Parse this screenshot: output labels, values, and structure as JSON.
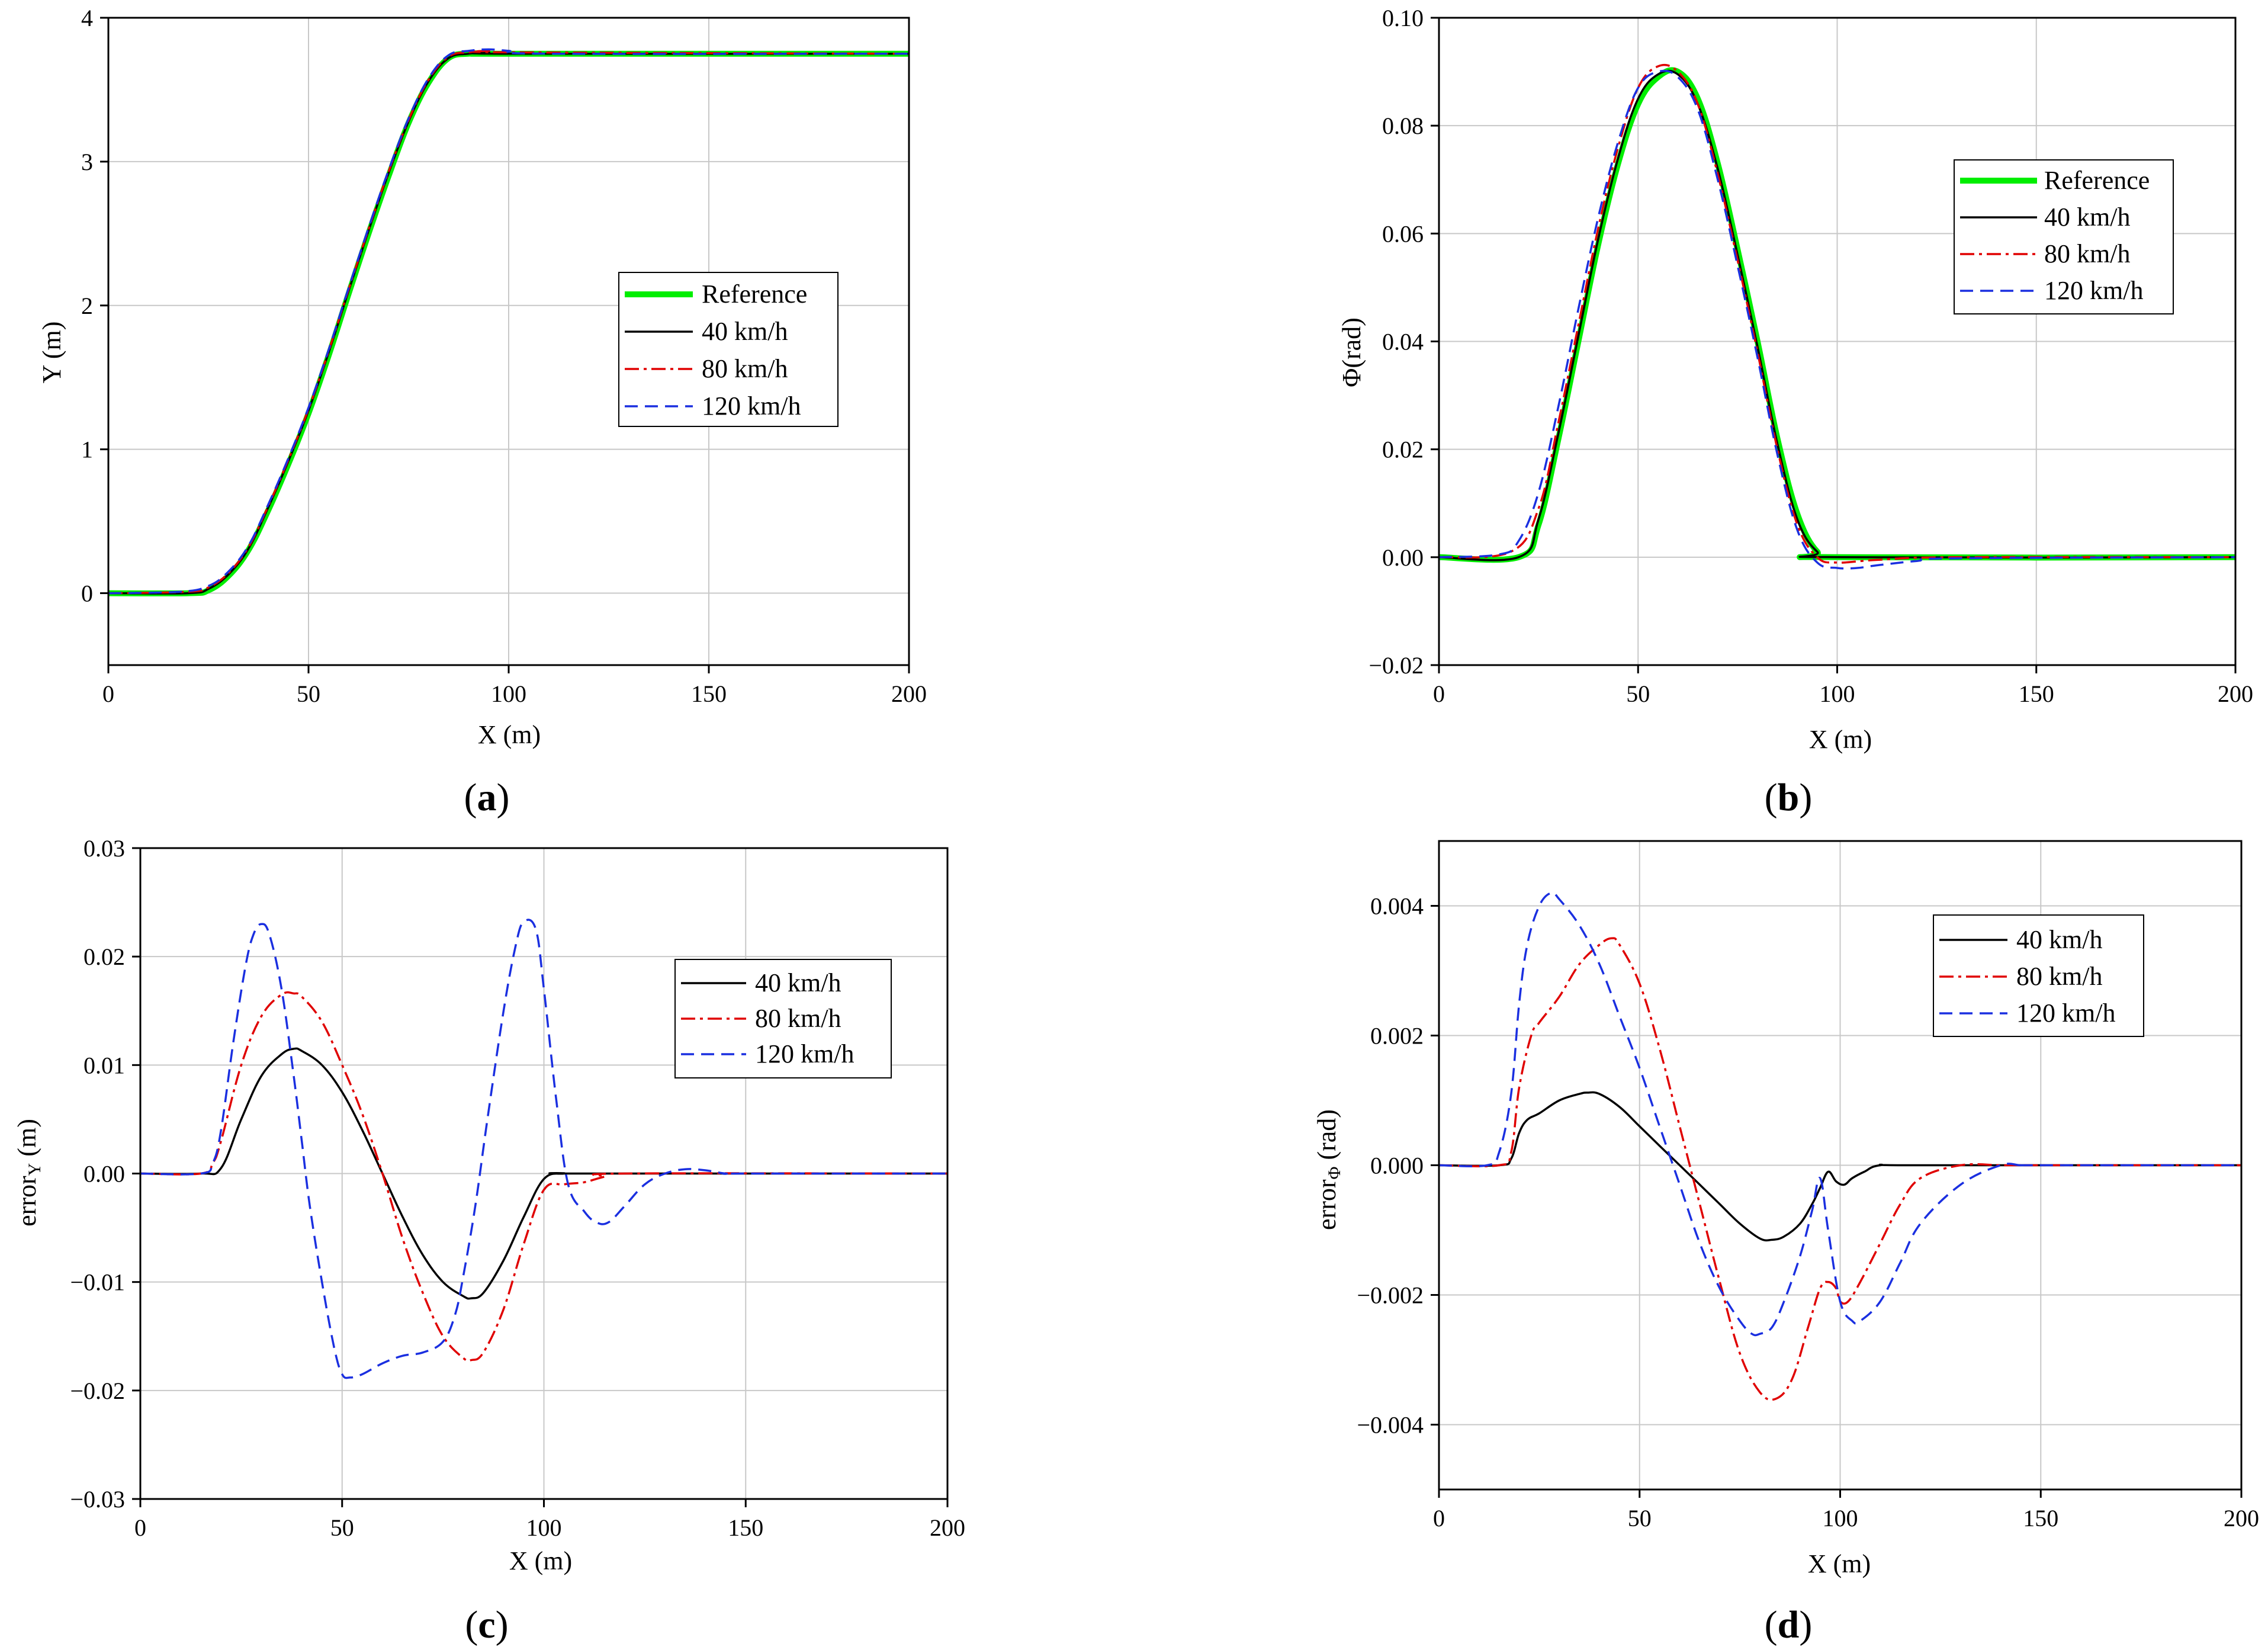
{
  "figure": {
    "panels": [
      {
        "label_open": "(",
        "label_letter": "a",
        "label_close": ")"
      },
      {
        "label_open": "(",
        "label_letter": "b",
        "label_close": ")"
      },
      {
        "label_open": "(",
        "label_letter": "c",
        "label_close": ")"
      },
      {
        "label_open": "(",
        "label_letter": "d",
        "label_close": ")"
      }
    ]
  },
  "colors": {
    "reference": "#00ee00",
    "v40": "#000000",
    "v80": "#e00000",
    "v120": "#1a2fe0",
    "grid": "#c8c8c8"
  },
  "chart_data": [
    {
      "type": "line",
      "title": "",
      "xlabel": "X (m)",
      "ylabel": "Y (m)",
      "xlim": [
        0,
        200
      ],
      "ylim": [
        -0.5,
        4
      ],
      "xticks": [
        0,
        50,
        100,
        150,
        200
      ],
      "yticks": [
        0,
        1,
        2,
        3,
        4
      ],
      "xtick_labels": [
        "0",
        "50",
        "100",
        "150",
        "200"
      ],
      "ytick_labels": [
        "0",
        "1",
        "2",
        "3",
        "4"
      ],
      "grid": true,
      "legend_position": "center-right",
      "series": [
        {
          "name": "Reference",
          "style": "reference",
          "x": [
            0,
            20,
            25,
            30,
            35,
            40,
            45,
            50,
            55,
            60,
            65,
            70,
            75,
            80,
            85,
            90,
            95,
            100,
            200
          ],
          "y": [
            0,
            0,
            0.02,
            0.12,
            0.3,
            0.58,
            0.9,
            1.25,
            1.65,
            2.08,
            2.5,
            2.9,
            3.27,
            3.55,
            3.72,
            3.75,
            3.75,
            3.75,
            3.75
          ]
        },
        {
          "name": "40 km/h",
          "style": "v40",
          "x": [
            0,
            20,
            25,
            30,
            35,
            40,
            45,
            50,
            55,
            60,
            65,
            70,
            75,
            80,
            85,
            90,
            95,
            100,
            200
          ],
          "y": [
            0,
            0,
            0.03,
            0.13,
            0.31,
            0.6,
            0.92,
            1.27,
            1.67,
            2.1,
            2.52,
            2.92,
            3.28,
            3.56,
            3.72,
            3.75,
            3.76,
            3.75,
            3.75
          ]
        },
        {
          "name": "80 km/h",
          "style": "v80",
          "x": [
            0,
            20,
            25,
            30,
            35,
            40,
            45,
            50,
            55,
            60,
            65,
            70,
            75,
            80,
            85,
            90,
            95,
            100,
            200
          ],
          "y": [
            0,
            0.01,
            0.04,
            0.14,
            0.32,
            0.61,
            0.93,
            1.28,
            1.68,
            2.11,
            2.53,
            2.93,
            3.29,
            3.57,
            3.73,
            3.76,
            3.77,
            3.76,
            3.75
          ]
        },
        {
          "name": "120 km/h",
          "style": "v120",
          "x": [
            0,
            18,
            25,
            30,
            35,
            40,
            45,
            50,
            55,
            60,
            65,
            70,
            75,
            80,
            85,
            90,
            95,
            100,
            110,
            200
          ],
          "y": [
            0,
            0.01,
            0.05,
            0.15,
            0.33,
            0.62,
            0.94,
            1.29,
            1.69,
            2.12,
            2.54,
            2.94,
            3.3,
            3.58,
            3.74,
            3.77,
            3.78,
            3.77,
            3.75,
            3.75
          ]
        }
      ]
    },
    {
      "type": "line",
      "title": "",
      "xlabel": "X (m)",
      "ylabel": "Φ(rad)",
      "xlim": [
        0,
        200
      ],
      "ylim": [
        -0.02,
        0.1
      ],
      "xticks": [
        0,
        50,
        100,
        150,
        200
      ],
      "yticks": [
        -0.02,
        0,
        0.02,
        0.04,
        0.06,
        0.08,
        0.1
      ],
      "xtick_labels": [
        "0",
        "50",
        "100",
        "150",
        "200"
      ],
      "ytick_labels": [
        "−0.02",
        "0.00",
        "0.02",
        "0.04",
        "0.06",
        "0.08",
        "0.10"
      ],
      "grid": true,
      "legend_position": "top-right",
      "series": [
        {
          "name": "Reference",
          "style": "reference",
          "x": [
            0,
            20,
            25,
            30,
            35,
            40,
            45,
            50,
            55,
            60,
            65,
            70,
            75,
            80,
            85,
            90,
            95,
            100,
            200
          ],
          "y": [
            0,
            0,
            0.006,
            0.022,
            0.04,
            0.058,
            0.073,
            0.084,
            0.089,
            0.09,
            0.085,
            0.073,
            0.057,
            0.04,
            0.022,
            0.008,
            0.001,
            0,
            0
          ]
        },
        {
          "name": "40 km/h",
          "style": "v40",
          "x": [
            0,
            20,
            25,
            30,
            35,
            40,
            45,
            50,
            55,
            60,
            65,
            70,
            75,
            80,
            85,
            90,
            95,
            100,
            200
          ],
          "y": [
            0,
            0,
            0.007,
            0.023,
            0.041,
            0.059,
            0.074,
            0.085,
            0.0895,
            0.0895,
            0.084,
            0.072,
            0.056,
            0.039,
            0.021,
            0.007,
            0.001,
            0,
            0
          ]
        },
        {
          "name": "80 km/h",
          "style": "v80",
          "x": [
            0,
            18,
            25,
            30,
            35,
            40,
            45,
            50,
            55,
            60,
            65,
            70,
            75,
            80,
            85,
            90,
            95,
            100,
            110,
            130,
            200
          ],
          "y": [
            0,
            0.001,
            0.009,
            0.025,
            0.043,
            0.061,
            0.076,
            0.087,
            0.091,
            0.09,
            0.084,
            0.071,
            0.055,
            0.038,
            0.02,
            0.006,
            0,
            -0.001,
            -0.0005,
            0,
            0
          ]
        },
        {
          "name": "120 km/h",
          "style": "v120",
          "x": [
            0,
            15,
            20,
            25,
            30,
            35,
            40,
            45,
            50,
            55,
            60,
            65,
            70,
            75,
            80,
            85,
            90,
            95,
            100,
            105,
            110,
            120,
            130,
            200
          ],
          "y": [
            0,
            0.0005,
            0.003,
            0.012,
            0.028,
            0.046,
            0.063,
            0.077,
            0.087,
            0.09,
            0.089,
            0.083,
            0.07,
            0.054,
            0.037,
            0.019,
            0.005,
            -0.001,
            -0.002,
            -0.002,
            -0.0015,
            -0.0007,
            -0.0002,
            0
          ]
        }
      ]
    },
    {
      "type": "line",
      "title": "",
      "xlabel": "X (m)",
      "ylabel": "error",
      "ylabel_sub": "Y",
      "ylabel_suffix": " (m)",
      "xlim": [
        0,
        200
      ],
      "ylim": [
        -0.03,
        0.03
      ],
      "xticks": [
        0,
        50,
        100,
        150,
        200
      ],
      "yticks": [
        -0.03,
        -0.02,
        -0.01,
        0,
        0.01,
        0.02,
        0.03
      ],
      "xtick_labels": [
        "0",
        "50",
        "100",
        "150",
        "200"
      ],
      "ytick_labels": [
        "−0.03",
        "−0.02",
        "−0.01",
        "0.00",
        "0.01",
        "0.02",
        "0.03"
      ],
      "grid": true,
      "legend_position": "top-right",
      "series": [
        {
          "name": "40 km/h",
          "style": "v40",
          "x": [
            0,
            15,
            20,
            25,
            30,
            35,
            38,
            40,
            45,
            50,
            55,
            60,
            65,
            70,
            75,
            80,
            82,
            85,
            90,
            95,
            100,
            105,
            110,
            200
          ],
          "y": [
            0,
            0,
            0.0005,
            0.005,
            0.009,
            0.011,
            0.0115,
            0.0113,
            0.01,
            0.0075,
            0.004,
            0,
            -0.004,
            -0.0075,
            -0.01,
            -0.0113,
            -0.0115,
            -0.011,
            -0.008,
            -0.004,
            -0.0005,
            0,
            0,
            0
          ]
        },
        {
          "name": "80 km/h",
          "style": "v80",
          "x": [
            0,
            15,
            18,
            20,
            25,
            30,
            35,
            38,
            40,
            45,
            50,
            55,
            60,
            65,
            70,
            75,
            80,
            82,
            85,
            90,
            95,
            100,
            105,
            110,
            115,
            120,
            200
          ],
          "y": [
            0,
            0,
            0.001,
            0.003,
            0.01,
            0.0145,
            0.0165,
            0.0166,
            0.0163,
            0.014,
            0.01,
            0.0055,
            0,
            -0.006,
            -0.011,
            -0.015,
            -0.017,
            -0.0172,
            -0.0165,
            -0.0125,
            -0.0065,
            -0.0015,
            -0.001,
            -0.0008,
            -0.0003,
            0,
            0
          ]
        },
        {
          "name": "120 km/h",
          "style": "v120",
          "x": [
            0,
            15,
            18,
            20,
            23,
            26,
            28,
            30,
            32,
            35,
            38,
            40,
            42,
            45,
            48,
            50,
            52,
            55,
            60,
            65,
            70,
            75,
            78,
            80,
            83,
            86,
            90,
            93,
            95,
            98,
            100,
            103,
            106,
            110,
            113,
            116,
            120,
            125,
            130,
            135,
            140,
            145,
            150,
            200
          ],
          "y": [
            0,
            0,
            0.001,
            0.004,
            0.012,
            0.019,
            0.022,
            0.023,
            0.022,
            0.017,
            0.009,
            0.003,
            -0.003,
            -0.01,
            -0.016,
            -0.0185,
            -0.0188,
            -0.0185,
            -0.0175,
            -0.0168,
            -0.0165,
            -0.0155,
            -0.013,
            -0.0095,
            -0.003,
            0.005,
            0.015,
            0.021,
            0.0232,
            0.0225,
            0.017,
            0.007,
            -0.001,
            -0.0035,
            -0.0045,
            -0.0045,
            -0.003,
            -0.001,
            0,
            0.0004,
            0.0003,
            0,
            0,
            0
          ]
        }
      ]
    },
    {
      "type": "line",
      "title": "",
      "xlabel": "X (m)",
      "ylabel": "error",
      "ylabel_sub": "Φ",
      "ylabel_suffix": " (rad)",
      "xlim": [
        0,
        200
      ],
      "ylim": [
        -0.005,
        0.005
      ],
      "xticks": [
        0,
        50,
        100,
        150,
        200
      ],
      "yticks": [
        -0.004,
        -0.002,
        0,
        0.002,
        0.004
      ],
      "xtick_labels": [
        "0",
        "50",
        "100",
        "150",
        "200"
      ],
      "ytick_labels": [
        "−0.004",
        "−0.002",
        "0.000",
        "0.002",
        "0.004"
      ],
      "grid": true,
      "legend_position": "top-right",
      "series": [
        {
          "name": "40 km/h",
          "style": "v40",
          "x": [
            0,
            15,
            18,
            20,
            22,
            25,
            30,
            35,
            37,
            40,
            45,
            50,
            55,
            60,
            65,
            70,
            75,
            80,
            83,
            86,
            90,
            93,
            95,
            97,
            99,
            101,
            103,
            106,
            110,
            120,
            200
          ],
          "y": [
            0,
            0,
            0.0001,
            0.0005,
            0.0007,
            0.0008,
            0.001,
            0.0011,
            0.00112,
            0.0011,
            0.0009,
            0.0006,
            0.0003,
            0,
            -0.0003,
            -0.0006,
            -0.0009,
            -0.00113,
            -0.00115,
            -0.0011,
            -0.0009,
            -0.0006,
            -0.00035,
            -0.0001,
            -0.00025,
            -0.0003,
            -0.0002,
            -0.0001,
            0,
            0,
            0
          ]
        },
        {
          "name": "80 km/h",
          "style": "v80",
          "x": [
            0,
            15,
            18,
            20,
            23,
            25,
            30,
            35,
            40,
            43,
            45,
            50,
            55,
            60,
            65,
            70,
            75,
            80,
            84,
            88,
            92,
            95,
            97,
            99,
            100,
            102,
            105,
            110,
            115,
            120,
            130,
            140,
            145,
            150,
            200
          ],
          "y": [
            0,
            0,
            0.0002,
            0.0012,
            0.002,
            0.0022,
            0.0026,
            0.0031,
            0.0034,
            0.0035,
            0.0034,
            0.0028,
            0.0018,
            0.0006,
            -0.0006,
            -0.0018,
            -0.0029,
            -0.0035,
            -0.0036,
            -0.0033,
            -0.0025,
            -0.0019,
            -0.0018,
            -0.0019,
            -0.0021,
            -0.0021,
            -0.0018,
            -0.0012,
            -0.0006,
            -0.0002,
            0,
            0,
            0,
            0,
            0
          ]
        },
        {
          "name": "120 km/h",
          "style": "v120",
          "x": [
            0,
            12,
            15,
            18,
            20,
            22,
            25,
            28,
            30,
            35,
            40,
            45,
            50,
            55,
            60,
            65,
            70,
            75,
            78,
            80,
            83,
            86,
            90,
            93,
            95,
            97,
            100,
            103,
            105,
            110,
            115,
            120,
            130,
            140,
            145,
            150,
            200
          ],
          "y": [
            0,
            0,
            0.0002,
            0.0011,
            0.0025,
            0.0034,
            0.004,
            0.0042,
            0.0041,
            0.0037,
            0.0031,
            0.0023,
            0.0015,
            0.0006,
            -0.0003,
            -0.0012,
            -0.0019,
            -0.0024,
            -0.0026,
            -0.0026,
            -0.0025,
            -0.0021,
            -0.0014,
            -0.0007,
            -0.0002,
            -0.001,
            -0.0021,
            -0.0024,
            -0.0024,
            -0.0021,
            -0.0015,
            -0.0009,
            -0.0003,
            0,
            0,
            0,
            0
          ]
        }
      ]
    }
  ]
}
